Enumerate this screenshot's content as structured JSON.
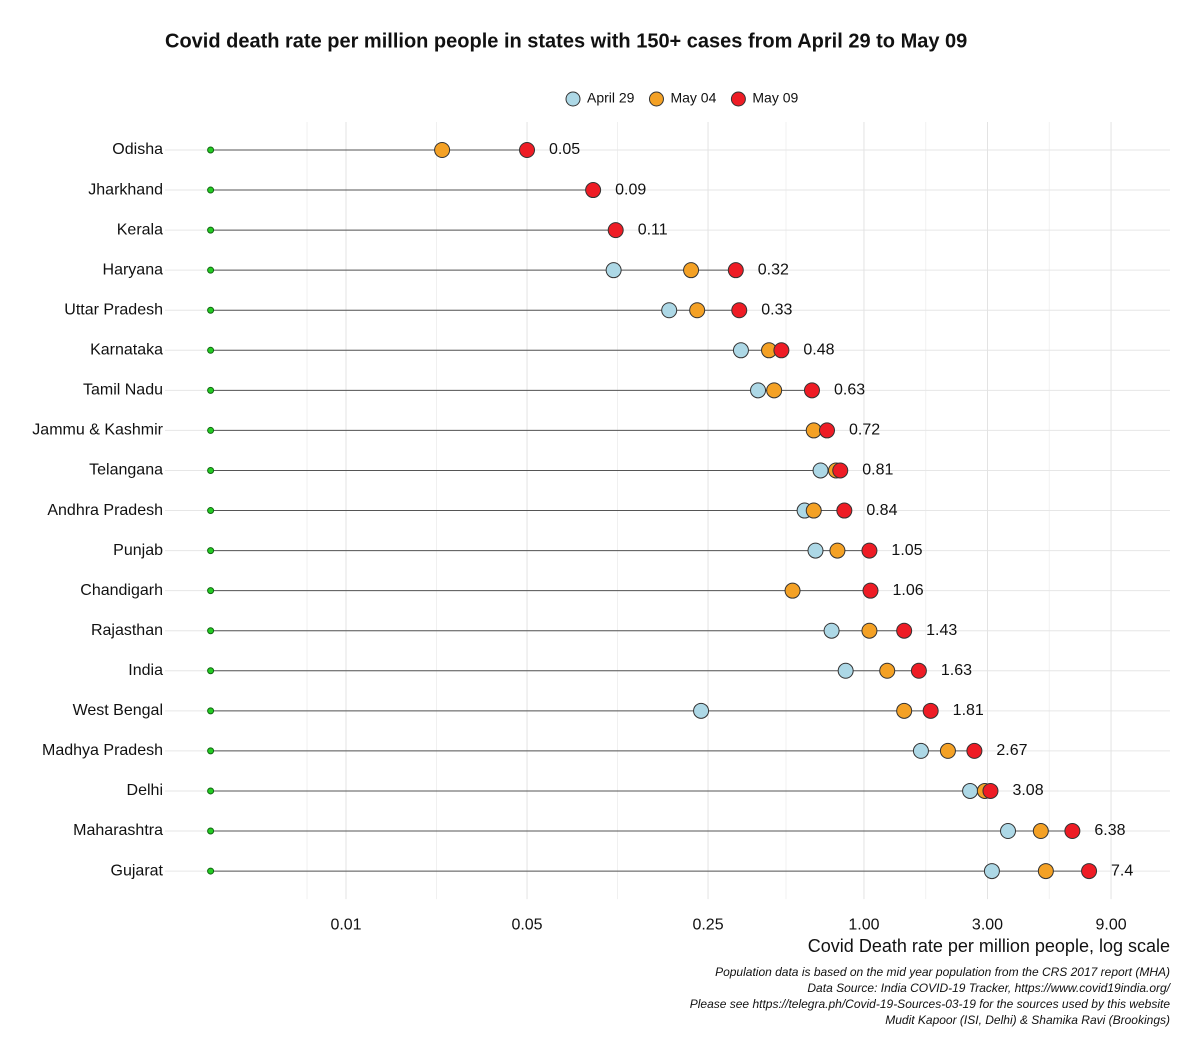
{
  "chart_data": {
    "type": "dot",
    "title": "Covid death rate per million people in states with 150+ cases from April 29 to May 09",
    "x_label": "Covid Death rate per million people, log scale",
    "notes": [
      "Population data is based on the mid year population from the CRS 2017 report (MHA)",
      "Data Source: India COVID-19 Tracker, https://www.covid19india.org/",
      "Please see https://telegra.ph/Covid-19-Sources-03-19 for the sources used by this website",
      "Mudit Kapoor (ISI, Delhi) & Shamika Ravi (Brookings)"
    ],
    "categories": [
      "Odisha",
      "Jharkhand",
      "Kerala",
      "Haryana",
      "Uttar Pradesh",
      "Karnataka",
      "Tamil Nadu",
      "Jammu & Kashmir",
      "Telangana",
      "Andhra Pradesh",
      "Punjab",
      "Chandigarh",
      "Rajasthan",
      "India",
      "West Bengal",
      "Madhya Pradesh",
      "Delhi",
      "Maharashtra",
      "Gujarat"
    ],
    "segment_start": 0.003,
    "segment_start_color": "#22cc22",
    "series": [
      {
        "name": "April 29",
        "color": "#add8e6",
        "values": [
          null,
          null,
          null,
          0.108,
          0.177,
          0.335,
          0.39,
          null,
          0.68,
          0.59,
          0.65,
          null,
          0.75,
          0.85,
          0.235,
          1.66,
          2.57,
          3.6,
          3.12
        ]
      },
      {
        "name": "May 04",
        "color": "#f4a125",
        "values": [
          0.0235,
          null,
          null,
          0.215,
          0.227,
          0.43,
          0.45,
          0.64,
          0.78,
          0.64,
          0.79,
          0.53,
          1.05,
          1.23,
          1.43,
          2.11,
          2.93,
          4.82,
          5.04
        ]
      },
      {
        "name": "May 09",
        "color": "#ee1c25",
        "values": [
          0.05,
          0.09,
          0.11,
          0.32,
          0.33,
          0.48,
          0.63,
          0.72,
          0.81,
          0.84,
          1.05,
          1.06,
          1.43,
          1.63,
          1.81,
          2.67,
          3.08,
          6.38,
          7.4
        ],
        "labeled": true
      }
    ],
    "log_x": true,
    "xlim": [
      0.002,
      15.2
    ],
    "xticks": [
      0.01,
      0.05,
      0.25,
      {
        "value": 1,
        "label": "1.00"
      },
      {
        "value": 3,
        "label": "3.00"
      },
      {
        "value": 9,
        "label": "9.00"
      }
    ],
    "grid": true
  }
}
